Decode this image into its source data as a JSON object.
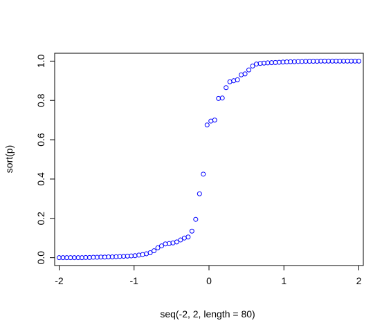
{
  "chart_data": {
    "type": "scatter",
    "title": "",
    "xlabel": "seq(-2, 2, length = 80)",
    "ylabel": "sort(p)",
    "xlim": [
      -2.06,
      2.06
    ],
    "ylim": [
      -0.04,
      1.04
    ],
    "x_ticks": [
      -2,
      -1,
      0,
      1,
      2
    ],
    "x_tick_labels": [
      "-2",
      "-1",
      "0",
      "1",
      "2"
    ],
    "y_ticks": [
      0.0,
      0.2,
      0.4,
      0.6,
      0.8,
      1.0
    ],
    "y_tick_labels": [
      "0.0",
      "0.2",
      "0.4",
      "0.6",
      "0.8",
      "1.0"
    ],
    "grid": false,
    "marker": "open-circle",
    "point_color": "#0000ff",
    "x": {
      "from": -2,
      "to": 2,
      "length": 80
    },
    "y": [
      0.0,
      0.0,
      0.0,
      0.0,
      0.0,
      0.0,
      0.0,
      0.001,
      0.001,
      0.002,
      0.002,
      0.003,
      0.003,
      0.004,
      0.004,
      0.005,
      0.006,
      0.007,
      0.008,
      0.009,
      0.01,
      0.013,
      0.016,
      0.02,
      0.025,
      0.035,
      0.05,
      0.06,
      0.07,
      0.072,
      0.075,
      0.08,
      0.09,
      0.1,
      0.105,
      0.135,
      0.195,
      0.325,
      0.425,
      0.675,
      0.695,
      0.7,
      0.81,
      0.812,
      0.865,
      0.895,
      0.9,
      0.905,
      0.93,
      0.935,
      0.955,
      0.975,
      0.985,
      0.988,
      0.99,
      0.991,
      0.992,
      0.993,
      0.994,
      0.995,
      0.996,
      0.997,
      0.997,
      0.998,
      0.998,
      0.999,
      0.999,
      0.999,
      0.999,
      1.0,
      1.0,
      1.0,
      1.0,
      1.0,
      1.0,
      1.0,
      1.0,
      1.0,
      1.0,
      1.0
    ]
  }
}
